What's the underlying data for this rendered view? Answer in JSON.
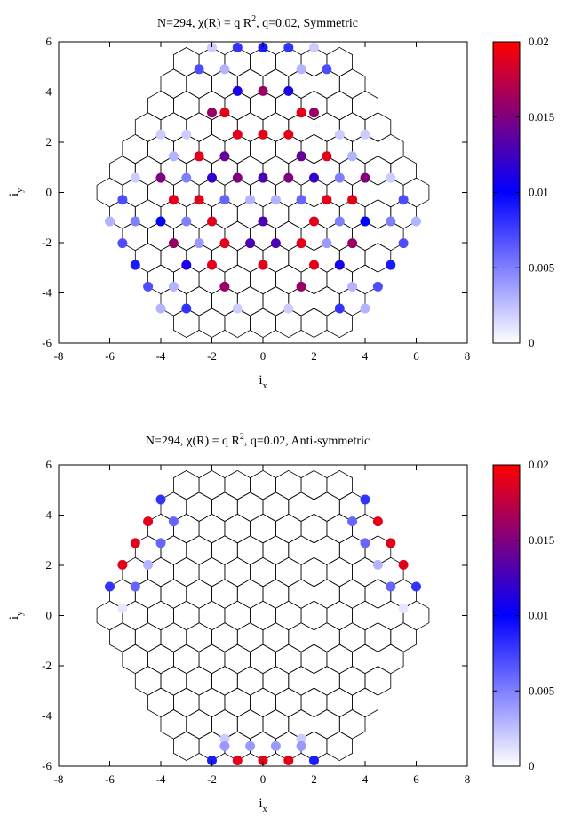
{
  "chart_data": [
    {
      "type": "scatter",
      "title": "N=294, χ(R) = q R², q=0.02, Symmetric",
      "title_parts": {
        "lead": "N=294, ",
        "chi": "χ",
        "mid": "(R) = q R",
        "sup": "2",
        "tail": ", q=0.02, Symmetric"
      },
      "xlabel": "i",
      "xlabel_sub": "x",
      "ylabel": "i",
      "ylabel_sub": "y",
      "xlim": [
        -8,
        8
      ],
      "ylim": [
        -6,
        6
      ],
      "xticks": [
        "-8",
        "-6",
        "-4",
        "-2",
        "0",
        "2",
        "4",
        "6",
        "8"
      ],
      "yticks": [
        "-6",
        "-4",
        "-2",
        "0",
        "2",
        "4",
        "6"
      ],
      "colorbar": {
        "range": [
          0,
          0.02
        ],
        "ticks": [
          "0",
          "0.005",
          "0.01",
          "0.015",
          "0.02"
        ],
        "colors": [
          "#ffffff",
          "#0000ff",
          "#ff0000"
        ]
      },
      "lattice_color": "#000000",
      "points": [
        {
          "x": -2.0,
          "y": 5.77,
          "v": 0.002
        },
        {
          "x": -1.0,
          "y": 5.77,
          "v": 0.008
        },
        {
          "x": 0.0,
          "y": 5.77,
          "v": 0.009
        },
        {
          "x": 1.0,
          "y": 5.77,
          "v": 0.008
        },
        {
          "x": 2.0,
          "y": 5.77,
          "v": 0.002
        },
        {
          "x": -2.5,
          "y": 4.91,
          "v": 0.007
        },
        {
          "x": -1.5,
          "y": 4.91,
          "v": 0.003
        },
        {
          "x": 1.5,
          "y": 4.91,
          "v": 0.003
        },
        {
          "x": 2.5,
          "y": 4.91,
          "v": 0.007
        },
        {
          "x": -1.0,
          "y": 4.04,
          "v": 0.011
        },
        {
          "x": 0.0,
          "y": 4.04,
          "v": 0.016
        },
        {
          "x": 1.0,
          "y": 4.04,
          "v": 0.011
        },
        {
          "x": -2.0,
          "y": 3.18,
          "v": 0.016
        },
        {
          "x": -1.5,
          "y": 3.18,
          "v": 0.019
        },
        {
          "x": 1.5,
          "y": 3.18,
          "v": 0.019
        },
        {
          "x": 2.0,
          "y": 3.18,
          "v": 0.016
        },
        {
          "x": -1.0,
          "y": 2.31,
          "v": 0.019
        },
        {
          "x": 0.0,
          "y": 2.31,
          "v": 0.019
        },
        {
          "x": 1.0,
          "y": 2.31,
          "v": 0.019
        },
        {
          "x": -4.0,
          "y": 2.31,
          "v": 0.002
        },
        {
          "x": -3.0,
          "y": 2.31,
          "v": 0.002
        },
        {
          "x": 3.0,
          "y": 2.31,
          "v": 0.002
        },
        {
          "x": 4.0,
          "y": 2.31,
          "v": 0.002
        },
        {
          "x": -3.5,
          "y": 1.44,
          "v": 0.003
        },
        {
          "x": -2.5,
          "y": 1.44,
          "v": 0.019
        },
        {
          "x": -1.5,
          "y": 1.44,
          "v": 0.014
        },
        {
          "x": 1.5,
          "y": 1.44,
          "v": 0.014
        },
        {
          "x": 2.5,
          "y": 1.44,
          "v": 0.019
        },
        {
          "x": 3.5,
          "y": 1.44,
          "v": 0.003
        },
        {
          "x": -5.0,
          "y": 0.58,
          "v": 0.002
        },
        {
          "x": -4.0,
          "y": 0.58,
          "v": 0.015
        },
        {
          "x": -3.0,
          "y": 0.58,
          "v": 0.005
        },
        {
          "x": -2.0,
          "y": 0.58,
          "v": 0.012
        },
        {
          "x": -1.0,
          "y": 0.58,
          "v": 0.015
        },
        {
          "x": 0.0,
          "y": 0.58,
          "v": 0.013
        },
        {
          "x": 1.0,
          "y": 0.58,
          "v": 0.015
        },
        {
          "x": 2.0,
          "y": 0.58,
          "v": 0.012
        },
        {
          "x": 3.0,
          "y": 0.58,
          "v": 0.005
        },
        {
          "x": 4.0,
          "y": 0.58,
          "v": 0.015
        },
        {
          "x": 5.0,
          "y": 0.58,
          "v": 0.002
        },
        {
          "x": -5.5,
          "y": -0.29,
          "v": 0.007
        },
        {
          "x": -3.5,
          "y": -0.29,
          "v": 0.019
        },
        {
          "x": -2.5,
          "y": -0.29,
          "v": 0.019
        },
        {
          "x": -1.5,
          "y": -0.29,
          "v": 0.006
        },
        {
          "x": -0.5,
          "y": -0.29,
          "v": 0.003
        },
        {
          "x": 0.5,
          "y": -0.29,
          "v": 0.003
        },
        {
          "x": 1.5,
          "y": -0.29,
          "v": 0.006
        },
        {
          "x": 2.5,
          "y": -0.29,
          "v": 0.019
        },
        {
          "x": 3.5,
          "y": -0.29,
          "v": 0.019
        },
        {
          "x": 5.5,
          "y": -0.29,
          "v": 0.007
        },
        {
          "x": -6.0,
          "y": -1.15,
          "v": 0.003
        },
        {
          "x": -5.0,
          "y": -1.15,
          "v": 0.005
        },
        {
          "x": -4.0,
          "y": -1.15,
          "v": 0.01
        },
        {
          "x": -3.0,
          "y": -1.15,
          "v": 0.005
        },
        {
          "x": -2.0,
          "y": -1.15,
          "v": 0.019
        },
        {
          "x": 0.0,
          "y": -1.15,
          "v": 0.013
        },
        {
          "x": 2.0,
          "y": -1.15,
          "v": 0.019
        },
        {
          "x": 3.0,
          "y": -1.15,
          "v": 0.005
        },
        {
          "x": 4.0,
          "y": -1.15,
          "v": 0.01
        },
        {
          "x": 5.0,
          "y": -1.15,
          "v": 0.005
        },
        {
          "x": 6.0,
          "y": -1.15,
          "v": 0.003
        },
        {
          "x": -5.5,
          "y": -2.02,
          "v": 0.007
        },
        {
          "x": -3.5,
          "y": -2.02,
          "v": 0.016
        },
        {
          "x": -2.5,
          "y": -2.02,
          "v": 0.004
        },
        {
          "x": -1.5,
          "y": -2.02,
          "v": 0.019
        },
        {
          "x": -0.5,
          "y": -2.02,
          "v": 0.013
        },
        {
          "x": 0.5,
          "y": -2.02,
          "v": 0.013
        },
        {
          "x": 1.5,
          "y": -2.02,
          "v": 0.019
        },
        {
          "x": 2.5,
          "y": -2.02,
          "v": 0.004
        },
        {
          "x": 3.5,
          "y": -2.02,
          "v": 0.016
        },
        {
          "x": 5.5,
          "y": -2.02,
          "v": 0.007
        },
        {
          "x": -5.0,
          "y": -2.89,
          "v": 0.009
        },
        {
          "x": -3.0,
          "y": -2.89,
          "v": 0.011
        },
        {
          "x": -2.0,
          "y": -2.89,
          "v": 0.019
        },
        {
          "x": 0.0,
          "y": -2.89,
          "v": 0.019
        },
        {
          "x": 2.0,
          "y": -2.89,
          "v": 0.019
        },
        {
          "x": 3.0,
          "y": -2.89,
          "v": 0.011
        },
        {
          "x": 5.0,
          "y": -2.89,
          "v": 0.009
        },
        {
          "x": -4.5,
          "y": -3.75,
          "v": 0.007
        },
        {
          "x": -3.5,
          "y": -3.75,
          "v": 0.003
        },
        {
          "x": -1.5,
          "y": -3.75,
          "v": 0.016
        },
        {
          "x": 1.5,
          "y": -3.75,
          "v": 0.016
        },
        {
          "x": 3.5,
          "y": -3.75,
          "v": 0.003
        },
        {
          "x": 4.5,
          "y": -3.75,
          "v": 0.007
        },
        {
          "x": -4.0,
          "y": -4.62,
          "v": 0.003
        },
        {
          "x": -3.0,
          "y": -4.62,
          "v": 0.008
        },
        {
          "x": -1.0,
          "y": -4.62,
          "v": 0.002
        },
        {
          "x": 1.0,
          "y": -4.62,
          "v": 0.002
        },
        {
          "x": 3.0,
          "y": -4.62,
          "v": 0.008
        },
        {
          "x": 4.0,
          "y": -4.62,
          "v": 0.003
        }
      ]
    },
    {
      "type": "scatter",
      "title": "N=294, χ(R) = q R², q=0.02, Anti-symmetric",
      "title_parts": {
        "lead": "N=294, ",
        "chi": "χ",
        "mid": "(R) = q R",
        "sup": "2",
        "tail": ", q=0.02, Anti-symmetric"
      },
      "xlabel": "i",
      "xlabel_sub": "x",
      "ylabel": "i",
      "ylabel_sub": "y",
      "xlim": [
        -8,
        8
      ],
      "ylim": [
        -6,
        6
      ],
      "xticks": [
        "-8",
        "-6",
        "-4",
        "-2",
        "0",
        "2",
        "4",
        "6",
        "8"
      ],
      "yticks": [
        "-6",
        "-4",
        "-2",
        "0",
        "2",
        "4",
        "6"
      ],
      "colorbar": {
        "range": [
          0,
          0.02
        ],
        "ticks": [
          "0",
          "0.005",
          "0.01",
          "0.015",
          "0.02"
        ],
        "colors": [
          "#ffffff",
          "#0000ff",
          "#ff0000"
        ]
      },
      "lattice_color": "#000000",
      "points": [
        {
          "x": -4.0,
          "y": 4.62,
          "v": 0.008
        },
        {
          "x": 4.0,
          "y": 4.62,
          "v": 0.008
        },
        {
          "x": -4.5,
          "y": 3.75,
          "v": 0.019
        },
        {
          "x": -3.5,
          "y": 3.75,
          "v": 0.006
        },
        {
          "x": 3.5,
          "y": 3.75,
          "v": 0.006
        },
        {
          "x": 4.5,
          "y": 3.75,
          "v": 0.019
        },
        {
          "x": -5.0,
          "y": 2.89,
          "v": 0.019
        },
        {
          "x": -4.0,
          "y": 2.89,
          "v": 0.006
        },
        {
          "x": 4.0,
          "y": 2.89,
          "v": 0.006
        },
        {
          "x": 5.0,
          "y": 2.89,
          "v": 0.019
        },
        {
          "x": -5.5,
          "y": 2.02,
          "v": 0.019
        },
        {
          "x": -4.5,
          "y": 2.02,
          "v": 0.003
        },
        {
          "x": 4.5,
          "y": 2.02,
          "v": 0.003
        },
        {
          "x": 5.5,
          "y": 2.02,
          "v": 0.019
        },
        {
          "x": -6.0,
          "y": 1.15,
          "v": 0.008
        },
        {
          "x": -5.0,
          "y": 1.15,
          "v": 0.006
        },
        {
          "x": 5.0,
          "y": 1.15,
          "v": 0.006
        },
        {
          "x": 6.0,
          "y": 1.15,
          "v": 0.008
        },
        {
          "x": -5.5,
          "y": 0.29,
          "v": 0.001
        },
        {
          "x": 5.5,
          "y": 0.29,
          "v": 0.001
        },
        {
          "x": -1.5,
          "y": -4.91,
          "v": 0.002
        },
        {
          "x": 1.5,
          "y": -4.91,
          "v": 0.002
        },
        {
          "x": -1.5,
          "y": -5.2,
          "v": 0.004
        },
        {
          "x": -0.5,
          "y": -5.2,
          "v": 0.004
        },
        {
          "x": 0.5,
          "y": -5.2,
          "v": 0.004
        },
        {
          "x": 1.5,
          "y": -5.2,
          "v": 0.004
        },
        {
          "x": -2.0,
          "y": -5.77,
          "v": 0.009
        },
        {
          "x": -1.0,
          "y": -5.77,
          "v": 0.019
        },
        {
          "x": 0.0,
          "y": -5.77,
          "v": 0.019
        },
        {
          "x": 1.0,
          "y": -5.77,
          "v": 0.019
        },
        {
          "x": 2.0,
          "y": -5.77,
          "v": 0.009
        }
      ]
    }
  ]
}
